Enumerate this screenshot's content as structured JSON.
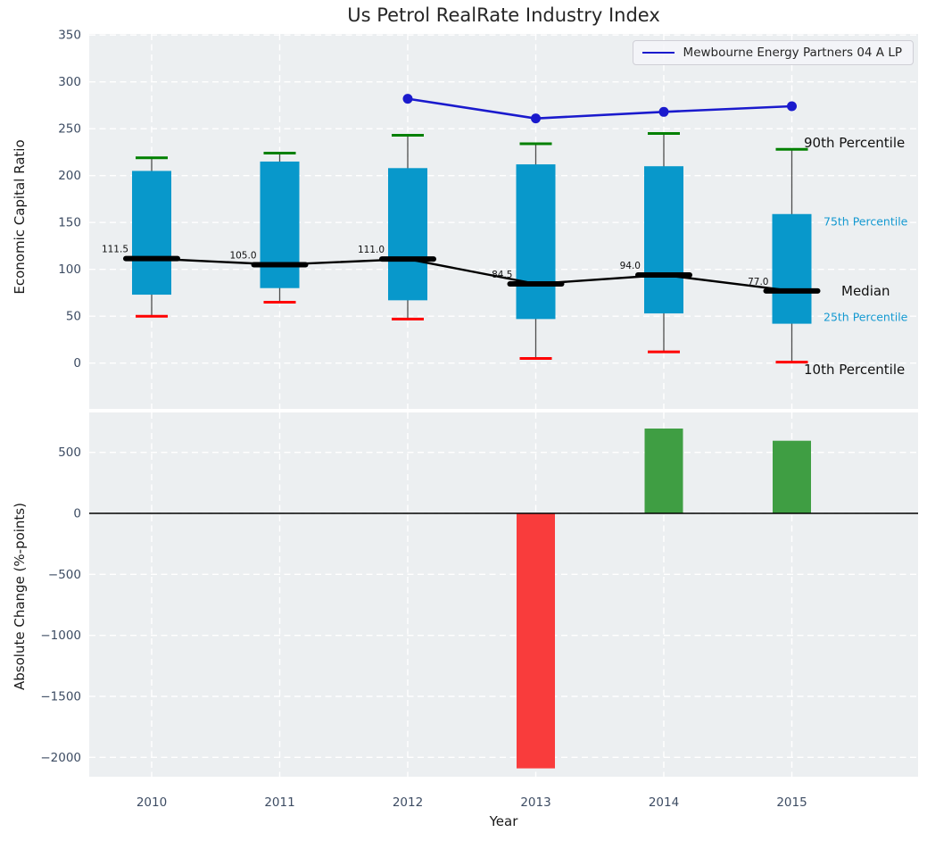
{
  "title": "Us Petrol RealRate Industry Index",
  "legend": {
    "label": "Mewbourne Energy Partners 04 A LP"
  },
  "colors": {
    "panel_bg": "#eceff1",
    "grid": "#ffffff",
    "box_fill": "#0898cb",
    "whisker": "#4d4d4d",
    "cap_top": "#008000",
    "cap_bottom": "#ff0000",
    "median": "#000000",
    "company_line": "#1a1acd",
    "bar_positive": "#3f9e43",
    "bar_negative": "#f93c3c",
    "tick_label": "#3d4c63",
    "median_label": "#111111",
    "zero_line": "#000000"
  },
  "chart_data": [
    {
      "type": "boxplot",
      "title": "Us Petrol RealRate Industry Index",
      "ylabel": "Economic Capital Ratio",
      "ylim": [
        -49,
        351
      ],
      "yticks": [
        0,
        50,
        100,
        150,
        200,
        250,
        300,
        350
      ],
      "grid": true,
      "categories": [
        "2010",
        "2011",
        "2012",
        "2013",
        "2014",
        "2015"
      ],
      "boxes": [
        {
          "year": "2010",
          "p10": 50,
          "p25": 73,
          "median": 111.5,
          "p75": 205,
          "p90": 219
        },
        {
          "year": "2011",
          "p10": 65,
          "p25": 80,
          "median": 105.0,
          "p75": 215,
          "p90": 224
        },
        {
          "year": "2012",
          "p10": 47,
          "p25": 67,
          "median": 111.0,
          "p75": 208,
          "p90": 243
        },
        {
          "year": "2013",
          "p10": 5,
          "p25": 47,
          "median": 84.5,
          "p75": 212,
          "p90": 234
        },
        {
          "year": "2014",
          "p10": 12,
          "p25": 53,
          "median": 94.0,
          "p75": 210,
          "p90": 245
        },
        {
          "year": "2015",
          "p10": 1,
          "p25": 42,
          "median": 77.0,
          "p75": 159,
          "p90": 228
        }
      ],
      "median_labels": [
        "111.5",
        "105.0",
        "111.0",
        "84.5",
        "94.0",
        "77.0"
      ],
      "series": [
        {
          "name": "Mewbourne Energy Partners 04 A LP",
          "x": [
            "2012",
            "2013",
            "2014",
            "2015"
          ],
          "y": [
            282,
            261,
            268,
            274
          ]
        }
      ],
      "legend_position": "upper right",
      "annotations": [
        {
          "text": "90th Percentile",
          "value": 235,
          "style": "black",
          "x": 901
        },
        {
          "text": "75th Percentile",
          "value": 151,
          "style": "cyan",
          "x": 923
        },
        {
          "text": "Median",
          "value": 77,
          "style": "black",
          "x": 943
        },
        {
          "text": "25th Percentile",
          "value": 49,
          "style": "cyan",
          "x": 923
        },
        {
          "text": "10th Percentile",
          "value": -7,
          "style": "black",
          "x": 901
        }
      ]
    },
    {
      "type": "bar",
      "ylabel": "Absolute Change (%-points)",
      "xlabel": "Year",
      "ylim": [
        -2160,
        827
      ],
      "yticks": [
        500,
        0,
        -500,
        -1000,
        -1500,
        -2000
      ],
      "grid": true,
      "categories": [
        "2010",
        "2011",
        "2012",
        "2013",
        "2014",
        "2015"
      ],
      "values": [
        null,
        null,
        null,
        -2090,
        695,
        595
      ]
    }
  ]
}
